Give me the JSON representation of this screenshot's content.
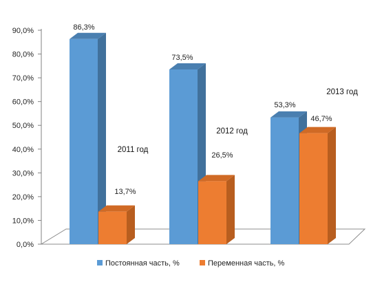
{
  "chart_data": {
    "type": "bar",
    "categories": [
      "2011 год",
      "2012 год",
      "2013 год"
    ],
    "series": [
      {
        "name": "Постоянная часть, %",
        "values": [
          86.3,
          73.5,
          53.3
        ],
        "labels": [
          "86,3%",
          "73,5%",
          "53,3%"
        ]
      },
      {
        "name": "Переменная часть, %",
        "values": [
          13.7,
          26.5,
          46.7
        ],
        "labels": [
          "13,7%",
          "26,5%",
          "46,7%"
        ]
      }
    ],
    "ylim": [
      0,
      90
    ],
    "y_ticks": [
      "0,0%",
      "10,0%",
      "20,0%",
      "30,0%",
      "40,0%",
      "50,0%",
      "60,0%",
      "70,0%",
      "80,0%",
      "90,0%"
    ],
    "grid": false,
    "legend_position": "bottom",
    "three_d": true
  },
  "colors": {
    "series_1": "#5B9BD5",
    "series_1_side": "#41719C",
    "series_1_top": "#4A7FB0",
    "series_2": "#ED7D31",
    "series_2_side": "#B85E1F",
    "series_2_top": "#D06A25"
  }
}
